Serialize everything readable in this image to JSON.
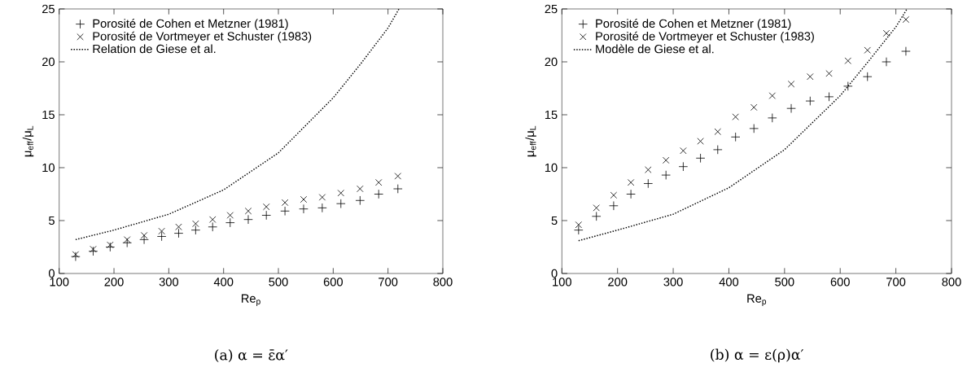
{
  "chart_data": [
    {
      "type": "scatter",
      "xlabel": "Re$_{p}$",
      "ylabel": "μ$_{eff}$/μ$_{L}$",
      "xlim": [
        100,
        800
      ],
      "ylim": [
        0,
        25
      ],
      "xticks": [
        100,
        200,
        300,
        400,
        500,
        600,
        700,
        800
      ],
      "yticks": [
        0,
        5,
        10,
        15,
        20,
        25
      ],
      "legend": "top left",
      "grid": false,
      "x": [
        130,
        162,
        193,
        224,
        255,
        287,
        318,
        349,
        380,
        412,
        445,
        478,
        512,
        546,
        580,
        614,
        649,
        683,
        718
      ],
      "series": [
        {
          "name": "Porosité de Cohen et Metzner (1981)",
          "color": "#000000",
          "marker": "plus",
          "values": [
            1.6,
            2.1,
            2.5,
            2.9,
            3.2,
            3.5,
            3.8,
            4.1,
            4.4,
            4.8,
            5.1,
            5.5,
            5.9,
            6.1,
            6.2,
            6.6,
            6.9,
            7.5,
            8.0
          ]
        },
        {
          "name": "Porosité de Vortmeyer et Schuster (1983)",
          "color": "#000000",
          "marker": "cross",
          "values": [
            1.8,
            2.3,
            2.7,
            3.2,
            3.6,
            4.0,
            4.4,
            4.7,
            5.1,
            5.5,
            5.9,
            6.3,
            6.7,
            7.0,
            7.2,
            7.6,
            8.0,
            8.6,
            9.2
          ]
        },
        {
          "name": "Relation de Giese et al.",
          "type": "line",
          "color": "#000000",
          "marker": "none",
          "line_style": "dotted",
          "x": [
            130,
            200,
            300,
            400,
            500,
            600,
            650,
            700,
            720
          ],
          "values": [
            3.2,
            4.1,
            5.6,
            7.9,
            11.4,
            16.6,
            19.8,
            23.2,
            25
          ]
        }
      ],
      "annotations": [
        "(a) α = ε̄α′"
      ]
    },
    {
      "type": "scatter",
      "xlabel": "Re$_{p}$",
      "ylabel": "μ$_{eff}$/μ$_{L}$",
      "xlim": [
        100,
        800
      ],
      "ylim": [
        0,
        25
      ],
      "xticks": [
        100,
        200,
        300,
        400,
        500,
        600,
        700,
        800
      ],
      "yticks": [
        0,
        5,
        10,
        15,
        20,
        25
      ],
      "legend": "top left",
      "grid": false,
      "x": [
        130,
        162,
        193,
        224,
        255,
        287,
        318,
        349,
        380,
        412,
        445,
        478,
        512,
        546,
        580,
        614,
        649,
        683,
        718
      ],
      "series": [
        {
          "name": "Porosité de Cohen et Metzner (1981)",
          "color": "#000000",
          "marker": "plus",
          "values": [
            4.1,
            5.4,
            6.4,
            7.5,
            8.5,
            9.3,
            10.1,
            10.9,
            11.7,
            12.9,
            13.7,
            14.7,
            15.6,
            16.3,
            16.7,
            17.7,
            18.6,
            20.0,
            21.0
          ]
        },
        {
          "name": "Porosité de Vortmeyer et Schuster (1983)",
          "color": "#000000",
          "marker": "cross",
          "values": [
            4.6,
            6.2,
            7.4,
            8.6,
            9.8,
            10.7,
            11.6,
            12.5,
            13.4,
            14.8,
            15.7,
            16.8,
            17.9,
            18.6,
            18.9,
            20.1,
            21.1,
            22.7,
            24.0
          ]
        },
        {
          "name": "Modèle de Giese et al.",
          "type": "line",
          "color": "#000000",
          "marker": "none",
          "line_style": "dotted",
          "x": [
            130,
            200,
            300,
            400,
            500,
            600,
            650,
            700,
            720
          ],
          "values": [
            3.1,
            4.1,
            5.6,
            8.1,
            11.7,
            16.8,
            20.0,
            23.3,
            25
          ]
        }
      ],
      "annotations": [
        "(b) α = ε(ρ)α′"
      ]
    }
  ]
}
